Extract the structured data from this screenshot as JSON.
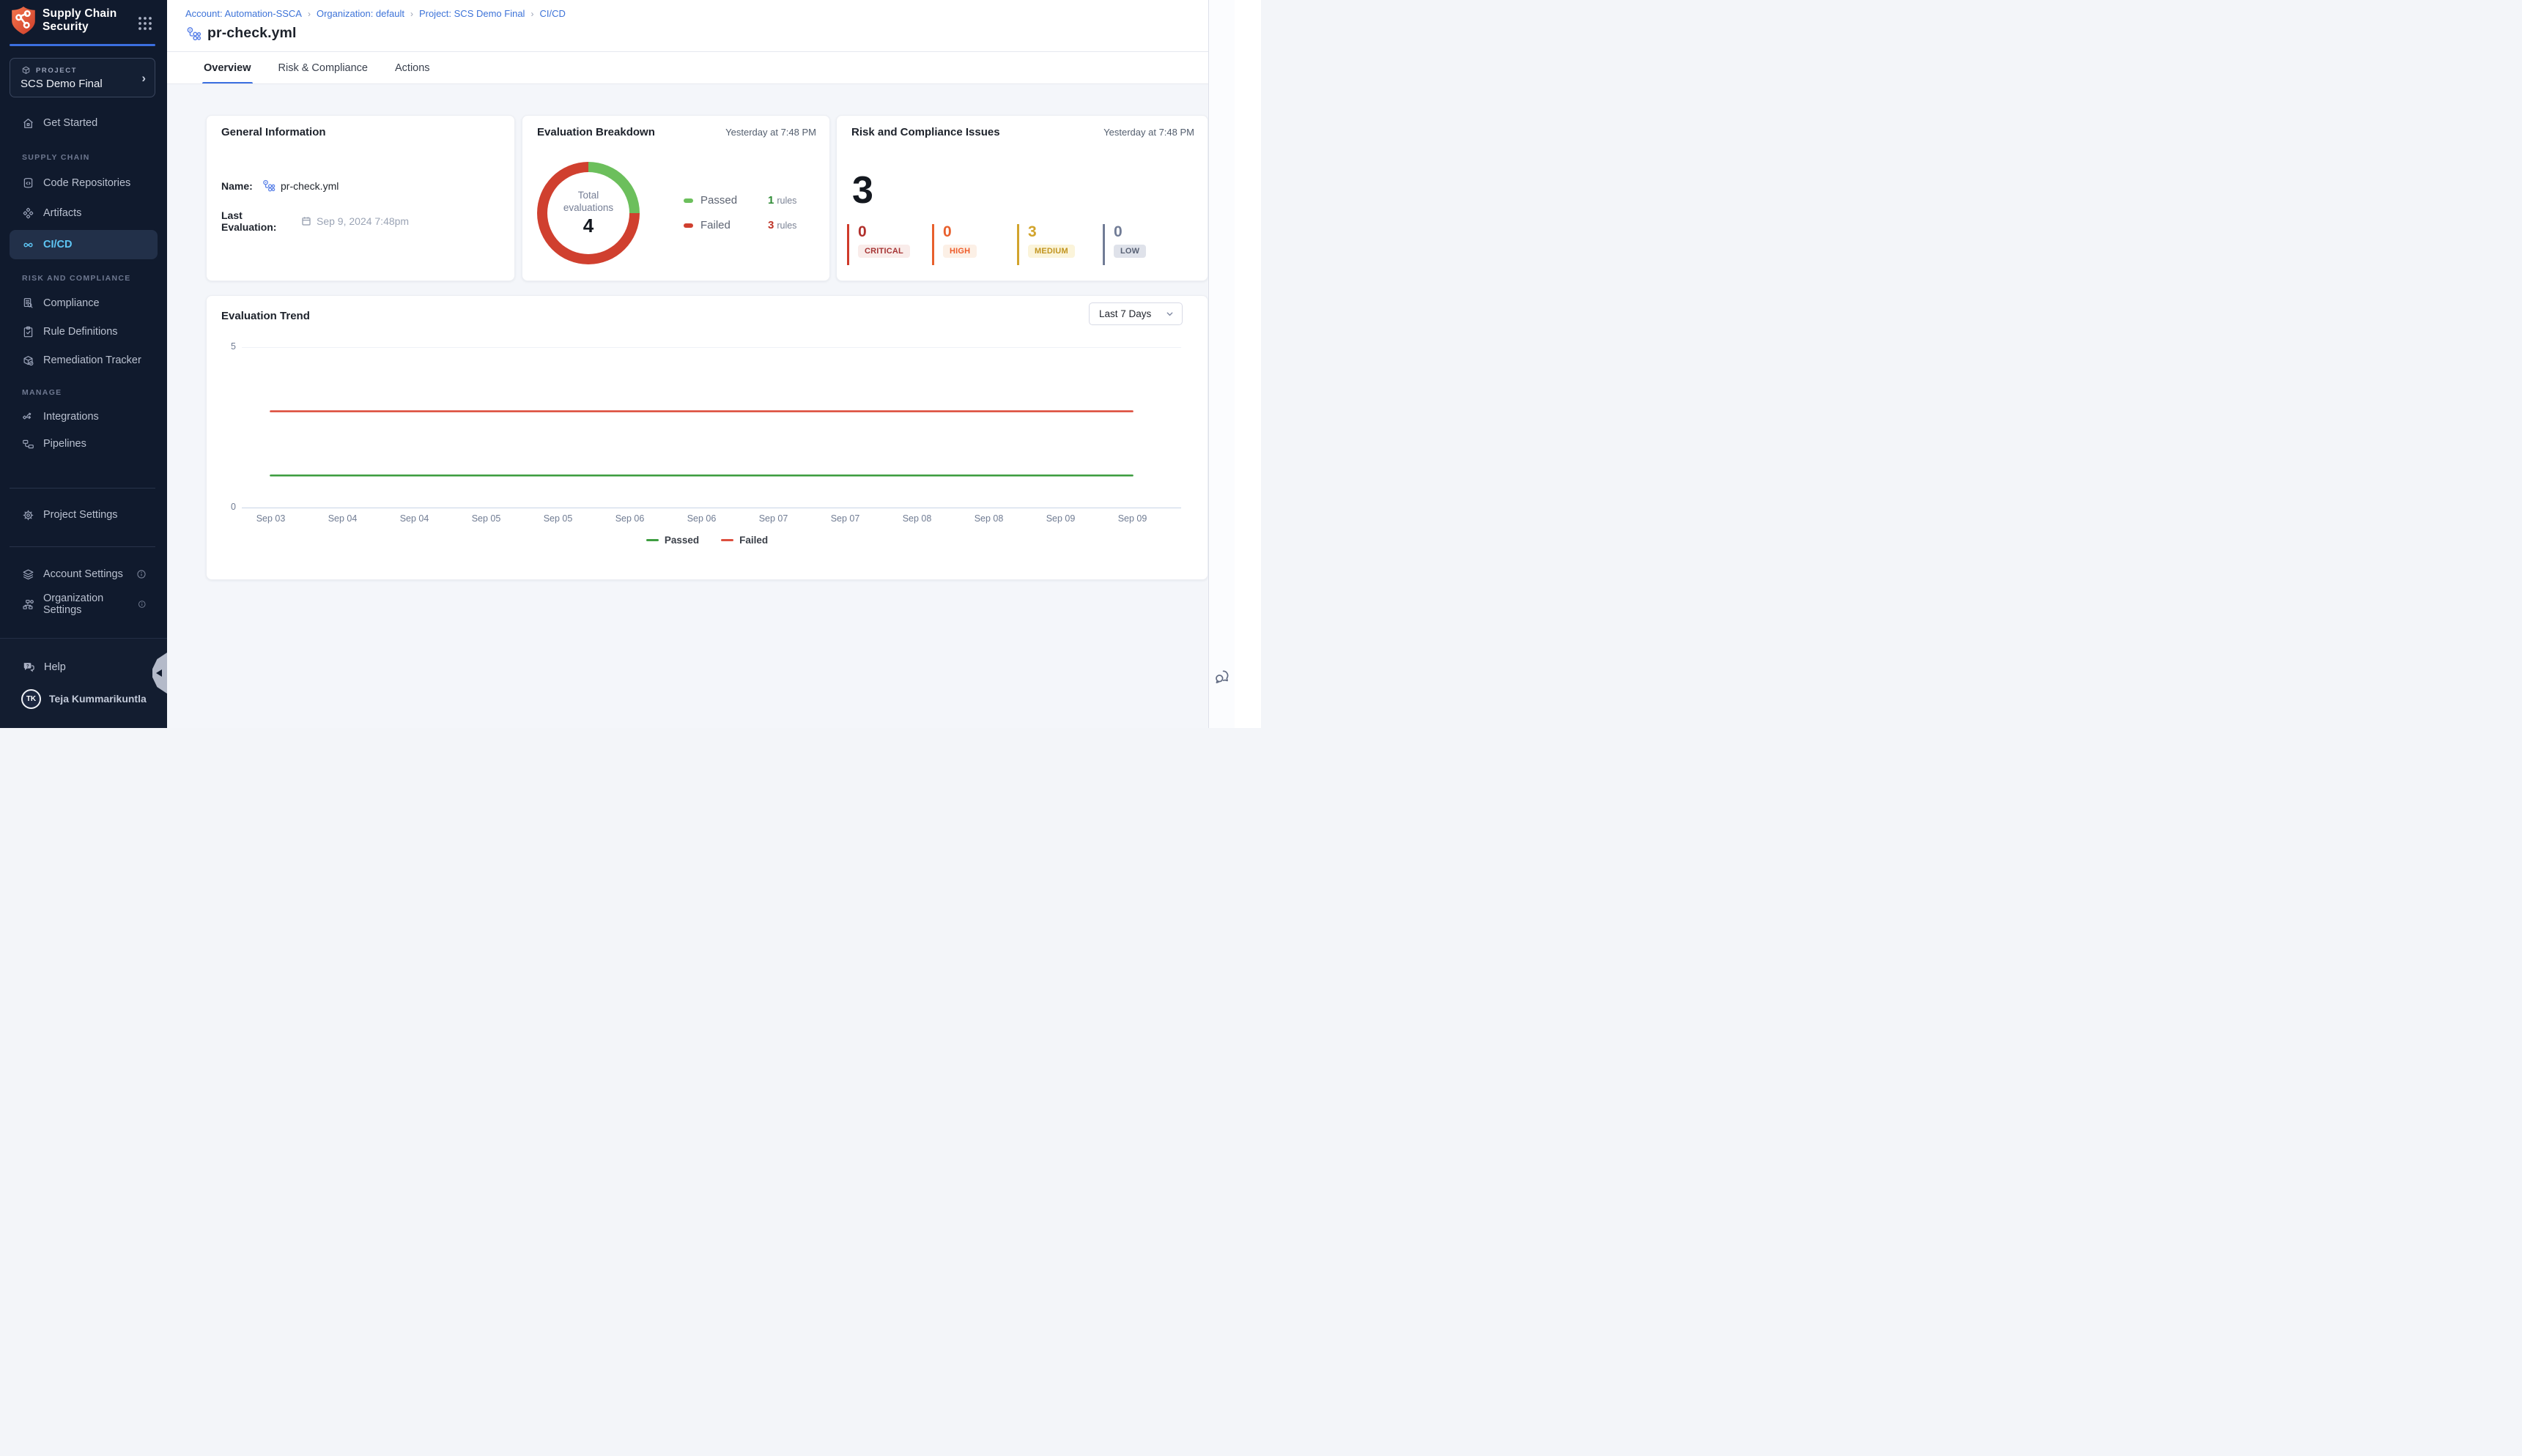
{
  "app": {
    "name_line1": "Supply Chain",
    "name_line2": "Security"
  },
  "sidebar": {
    "project": {
      "label": "PROJECT",
      "name": "SCS Demo Final"
    },
    "nav": {
      "get_started": "Get Started",
      "supply_chain_section": "SUPPLY CHAIN",
      "code_repositories": "Code Repositories",
      "artifacts": "Artifacts",
      "cicd": "CI/CD",
      "risk_section": "RISK AND COMPLIANCE",
      "compliance": "Compliance",
      "rule_definitions": "Rule Definitions",
      "remediation_tracker": "Remediation Tracker",
      "manage_section": "MANAGE",
      "integrations": "Integrations",
      "pipelines": "Pipelines",
      "project_settings": "Project Settings",
      "account_settings": "Account Settings",
      "organization_settings": "Organization Settings",
      "help": "Help"
    },
    "user": {
      "initials": "TK",
      "name": "Teja Kummarikuntla"
    }
  },
  "header": {
    "breadcrumb": [
      "Account: Automation-SSCA",
      "Organization: default",
      "Project: SCS Demo Final",
      "CI/CD"
    ],
    "title": "pr-check.yml",
    "tabs": [
      {
        "label": "Overview"
      },
      {
        "label": "Risk & Compliance"
      },
      {
        "label": "Actions"
      }
    ]
  },
  "general_info": {
    "title": "General Information",
    "name_label": "Name:",
    "name_value": "pr-check.yml",
    "last_eval_label": "Last Evaluation:",
    "last_eval_value": "Sep 9, 2024 7:48pm"
  },
  "evaluation_breakdown": {
    "title": "Evaluation Breakdown",
    "timestamp": "Yesterday at 7:48 PM",
    "center_label_1": "Total",
    "center_label_2": "evaluations",
    "total": "4",
    "legend": [
      {
        "label": "Passed",
        "value": "1",
        "unit": "rules",
        "color": "#6cbf5c",
        "value_color": "#2e8b34"
      },
      {
        "label": "Failed",
        "value": "3",
        "unit": "rules",
        "color": "#d0402f",
        "value_color": "#bf3528"
      }
    ]
  },
  "risk_card": {
    "title": "Risk and Compliance Issues",
    "timestamp": "Yesterday at 7:48 PM",
    "total": "3",
    "severities": [
      {
        "label": "CRITICAL",
        "value": "0",
        "number_color": "#b1302c",
        "bar_color": "#cf3a2a",
        "badge_bg": "#f9ecea",
        "badge_text": "#a63535"
      },
      {
        "label": "HIGH",
        "value": "0",
        "number_color": "#e8602d",
        "bar_color": "#e8602d",
        "badge_bg": "#fcf0e6",
        "badge_text": "#ee5c2b"
      },
      {
        "label": "MEDIUM",
        "value": "3",
        "number_color": "#d2a42c",
        "bar_color": "#d2a42c",
        "badge_bg": "#fbf4da",
        "badge_text": "#c2951f"
      },
      {
        "label": "LOW",
        "value": "0",
        "number_color": "#717c96",
        "bar_color": "#717c96",
        "badge_bg": "#dfe2ea",
        "badge_text": "#596275"
      }
    ]
  },
  "trend_card": {
    "title": "Evaluation Trend",
    "range_selector": "Last 7 Days"
  },
  "chart_data": [
    {
      "type": "pie",
      "subtype": "donut",
      "title": "Evaluation Breakdown",
      "center_label": "Total evaluations",
      "total": 4,
      "slices": [
        {
          "label": "Passed",
          "value": 1,
          "color": "#6cbf5c"
        },
        {
          "label": "Failed",
          "value": 3,
          "color": "#d0402f"
        }
      ],
      "legend_position": "right"
    },
    {
      "type": "line",
      "title": "Evaluation Trend",
      "x": [
        "Sep 03",
        "Sep 04",
        "Sep 04",
        "Sep 05",
        "Sep 05",
        "Sep 06",
        "Sep 06",
        "Sep 07",
        "Sep 07",
        "Sep 08",
        "Sep 08",
        "Sep 09",
        "Sep 09"
      ],
      "series": [
        {
          "name": "Passed",
          "color": "#3e9e41",
          "values": [
            1,
            1,
            1,
            1,
            1,
            1,
            1,
            1,
            1,
            1,
            1,
            1,
            1
          ]
        },
        {
          "name": "Failed",
          "color": "#dd4f3e",
          "values": [
            3,
            3,
            3,
            3,
            3,
            3,
            3,
            3,
            3,
            3,
            3,
            3,
            3
          ]
        }
      ],
      "ylim": [
        0,
        5
      ],
      "yticks": [
        0,
        5
      ],
      "grid": "horizontal-at-5-only",
      "legend_position": "bottom"
    }
  ]
}
